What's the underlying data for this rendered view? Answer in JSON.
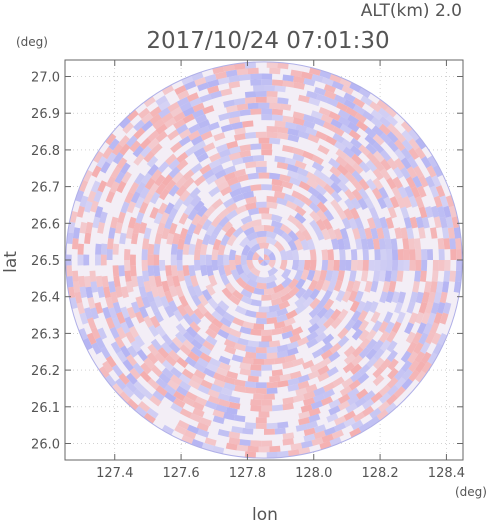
{
  "header": {
    "alt_label": "ALT(km) 2.0",
    "timestamp": "2017/10/24 07:01:30"
  },
  "chart_data": {
    "type": "heatmap",
    "title": "2017/10/24 07:01:30",
    "subtitle": "ALT(km) 2.0",
    "xlabel": "lon",
    "ylabel": "lat",
    "x_unit": "(deg)",
    "y_unit": "(deg)",
    "xlim": [
      127.25,
      128.45
    ],
    "ylim": [
      25.955,
      27.045
    ],
    "x_ticks": [
      "127.4",
      "127.6",
      "127.8",
      "128.0",
      "128.2",
      "128.4"
    ],
    "y_ticks": [
      "26.0",
      "26.1",
      "26.2",
      "26.3",
      "26.4",
      "26.5",
      "26.6",
      "26.7",
      "26.8",
      "26.9",
      "27.0"
    ],
    "center": {
      "lon": 127.85,
      "lat": 26.5
    },
    "range_lat_deg": 0.54,
    "grid": true,
    "colors": {
      "positive": "#f4a6a6",
      "negative": "#a9aaf2",
      "neutral": "#f3eef6",
      "axis": "#666666",
      "grid": "#b8b8b8"
    }
  }
}
